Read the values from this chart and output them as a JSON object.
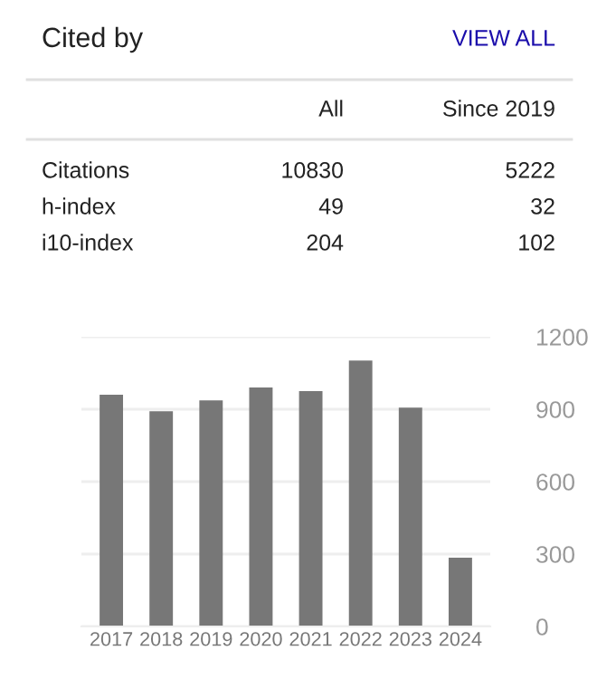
{
  "chart_data": [
    {
      "type": "other",
      "title": "Cited by",
      "annotations": [
        "VIEW ALL",
        "10830",
        "5222",
        "49",
        "32",
        "204",
        "102"
      ],
      "categories": [
        "All",
        "Since 2019"
      ],
      "y_categories": [
        "Citations",
        "h-index",
        "i10-index"
      ]
    },
    {
      "type": "bar",
      "categories": [
        "2017",
        "2018",
        "2019",
        "2020",
        "2021",
        "2022",
        "2023",
        "2024"
      ],
      "values": [
        960,
        892,
        937,
        990,
        975,
        1102,
        907,
        285
      ],
      "color": "#777777",
      "ylim": [
        0,
        1200
      ],
      "yticks": [
        0,
        300,
        600,
        900,
        1200
      ],
      "grid": "y"
    }
  ]
}
